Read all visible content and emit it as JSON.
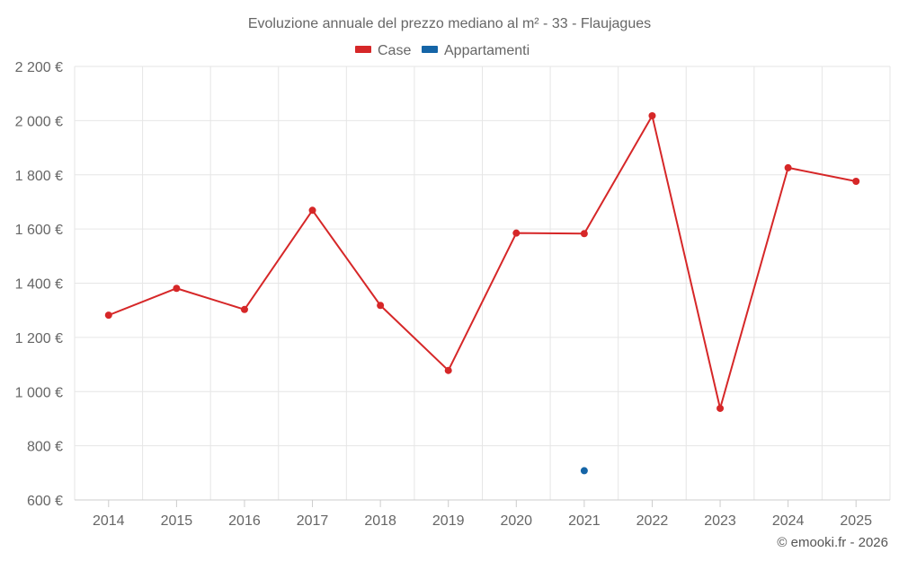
{
  "chart_data": {
    "type": "line",
    "title": "Evoluzione annuale del prezzo mediano al m² - 33 - Flaujagues",
    "categories": [
      "2014",
      "2015",
      "2016",
      "2017",
      "2018",
      "2019",
      "2020",
      "2021",
      "2022",
      "2023",
      "2024",
      "2025"
    ],
    "y_tick_labels": [
      "600 €",
      "800 €",
      "1 000 €",
      "1 200 €",
      "1 400 €",
      "1 600 €",
      "1 800 €",
      "2 000 €",
      "2 200 €"
    ],
    "y_ticks": [
      600,
      800,
      1000,
      1200,
      1400,
      1600,
      1800,
      2000,
      2200
    ],
    "ylim": [
      600,
      2200
    ],
    "xlabel": "",
    "ylabel": "",
    "grid": true,
    "legend_position": "top-center",
    "series": [
      {
        "name": "Case",
        "color": "#d62728",
        "values": [
          1282,
          1381,
          1303,
          1669,
          1318,
          1078,
          1585,
          1583,
          2018,
          938,
          1826,
          1776
        ]
      },
      {
        "name": "Appartamenti",
        "color": "#1565a7",
        "values": [
          null,
          null,
          null,
          null,
          null,
          null,
          null,
          708,
          null,
          null,
          null,
          null
        ]
      }
    ],
    "credit": "© emooki.fr - 2026"
  }
}
